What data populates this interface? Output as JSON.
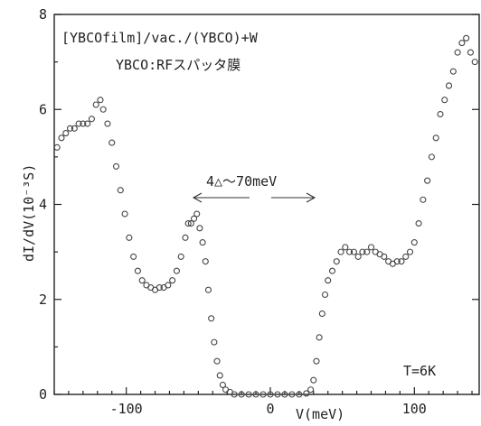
{
  "chart_data": {
    "type": "scatter",
    "title": "[YBCOfilm]/vac./(YBCO)+W",
    "subtitle": "YBCO:RFスパッタ膜",
    "xlabel": "V(meV)",
    "ylabel": "dI/dV(10⁻³S)",
    "xlim": [
      -150,
      145
    ],
    "ylim": [
      0,
      8
    ],
    "x_ticks": [
      -100,
      0,
      100
    ],
    "x_tick_labels": [
      "-100",
      "0",
      "100"
    ],
    "y_ticks": [
      0,
      2,
      4,
      6,
      8
    ],
    "y_tick_labels": [
      "0",
      "2",
      "4",
      "6",
      "8"
    ],
    "grid": false,
    "annotations": {
      "gap": "4△～70meV",
      "temperature": "T=6K"
    },
    "series": [
      {
        "points": [
          [
            -148,
            5.2
          ],
          [
            -145,
            5.4
          ],
          [
            -142,
            5.5
          ],
          [
            -139,
            5.6
          ],
          [
            -136,
            5.6
          ],
          [
            -133,
            5.7
          ],
          [
            -130,
            5.7
          ],
          [
            -127,
            5.7
          ],
          [
            -124,
            5.8
          ],
          [
            -121,
            6.1
          ],
          [
            -118,
            6.2
          ],
          [
            -116,
            6.0
          ],
          [
            -113,
            5.7
          ],
          [
            -110,
            5.3
          ],
          [
            -107,
            4.8
          ],
          [
            -104,
            4.3
          ],
          [
            -101,
            3.8
          ],
          [
            -98,
            3.3
          ],
          [
            -95,
            2.9
          ],
          [
            -92,
            2.6
          ],
          [
            -89,
            2.4
          ],
          [
            -86,
            2.3
          ],
          [
            -83,
            2.25
          ],
          [
            -80,
            2.2
          ],
          [
            -77,
            2.25
          ],
          [
            -74,
            2.25
          ],
          [
            -71,
            2.3
          ],
          [
            -68,
            2.4
          ],
          [
            -65,
            2.6
          ],
          [
            -62,
            2.9
          ],
          [
            -59,
            3.3
          ],
          [
            -57,
            3.6
          ],
          [
            -55,
            3.6
          ],
          [
            -53,
            3.7
          ],
          [
            -51,
            3.8
          ],
          [
            -49,
            3.5
          ],
          [
            -47,
            3.2
          ],
          [
            -45,
            2.8
          ],
          [
            -43,
            2.2
          ],
          [
            -41,
            1.6
          ],
          [
            -39,
            1.1
          ],
          [
            -37,
            0.7
          ],
          [
            -35,
            0.4
          ],
          [
            -33,
            0.2
          ],
          [
            -31,
            0.1
          ],
          [
            -28,
            0.05
          ],
          [
            -25,
            0.0
          ],
          [
            -20,
            0.0
          ],
          [
            -15,
            0.0
          ],
          [
            -10,
            0.0
          ],
          [
            -5,
            0.0
          ],
          [
            0,
            0.0
          ],
          [
            5,
            0.0
          ],
          [
            10,
            0.0
          ],
          [
            15,
            0.0
          ],
          [
            20,
            0.0
          ],
          [
            25,
            0.02
          ],
          [
            28,
            0.1
          ],
          [
            30,
            0.3
          ],
          [
            32,
            0.7
          ],
          [
            34,
            1.2
          ],
          [
            36,
            1.7
          ],
          [
            38,
            2.1
          ],
          [
            40,
            2.4
          ],
          [
            43,
            2.6
          ],
          [
            46,
            2.8
          ],
          [
            49,
            3.0
          ],
          [
            52,
            3.1
          ],
          [
            55,
            3.0
          ],
          [
            58,
            3.0
          ],
          [
            61,
            2.9
          ],
          [
            64,
            3.0
          ],
          [
            67,
            3.0
          ],
          [
            70,
            3.1
          ],
          [
            73,
            3.0
          ],
          [
            76,
            2.95
          ],
          [
            79,
            2.9
          ],
          [
            82,
            2.8
          ],
          [
            85,
            2.75
          ],
          [
            88,
            2.8
          ],
          [
            91,
            2.8
          ],
          [
            94,
            2.9
          ],
          [
            97,
            3.0
          ],
          [
            100,
            3.2
          ],
          [
            103,
            3.6
          ],
          [
            106,
            4.1
          ],
          [
            109,
            4.5
          ],
          [
            112,
            5.0
          ],
          [
            115,
            5.4
          ],
          [
            118,
            5.9
          ],
          [
            121,
            6.2
          ],
          [
            124,
            6.5
          ],
          [
            127,
            6.8
          ],
          [
            130,
            7.2
          ],
          [
            133,
            7.4
          ],
          [
            136,
            7.5
          ],
          [
            139,
            7.2
          ],
          [
            142,
            7.0
          ]
        ]
      }
    ]
  }
}
